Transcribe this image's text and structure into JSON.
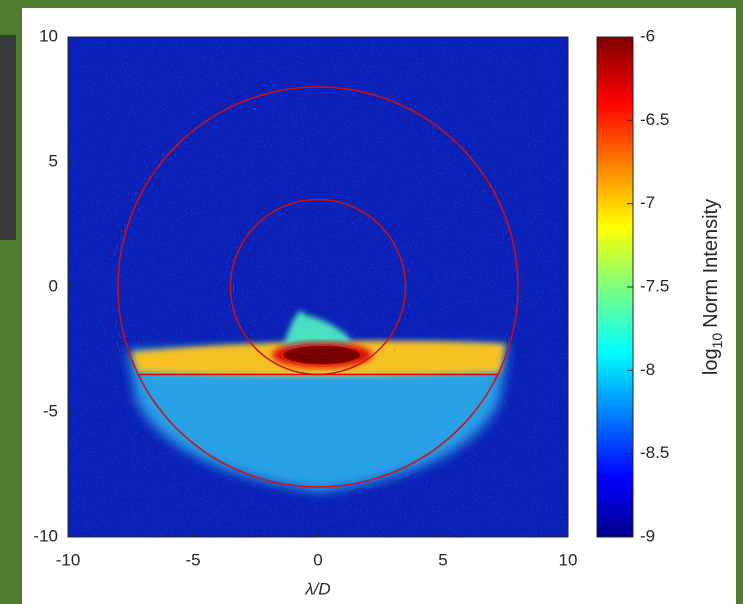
{
  "chart_data": {
    "type": "heatmap",
    "xlabel": "λ/D",
    "xlim": [
      -10,
      10
    ],
    "xticks": [
      -10,
      -5,
      0,
      5,
      10
    ],
    "ylim": [
      -10,
      10
    ],
    "yticks": [
      -10,
      -5,
      0,
      5,
      10
    ],
    "colorbar": {
      "clim": [
        -9,
        -6
      ],
      "cticks": [
        -9,
        -8.5,
        -8,
        -7.5,
        -7,
        -6.5,
        -6
      ],
      "label": {
        "base": "log",
        "sub": "10",
        "rest": "Norm Intensity"
      }
    },
    "overlays": {
      "color": "#d01010",
      "circles": [
        {
          "r": 8
        },
        {
          "r": 3.5
        }
      ],
      "line": {
        "y": -3.5,
        "x": [
          -7.2,
          7.2
        ]
      }
    }
  }
}
